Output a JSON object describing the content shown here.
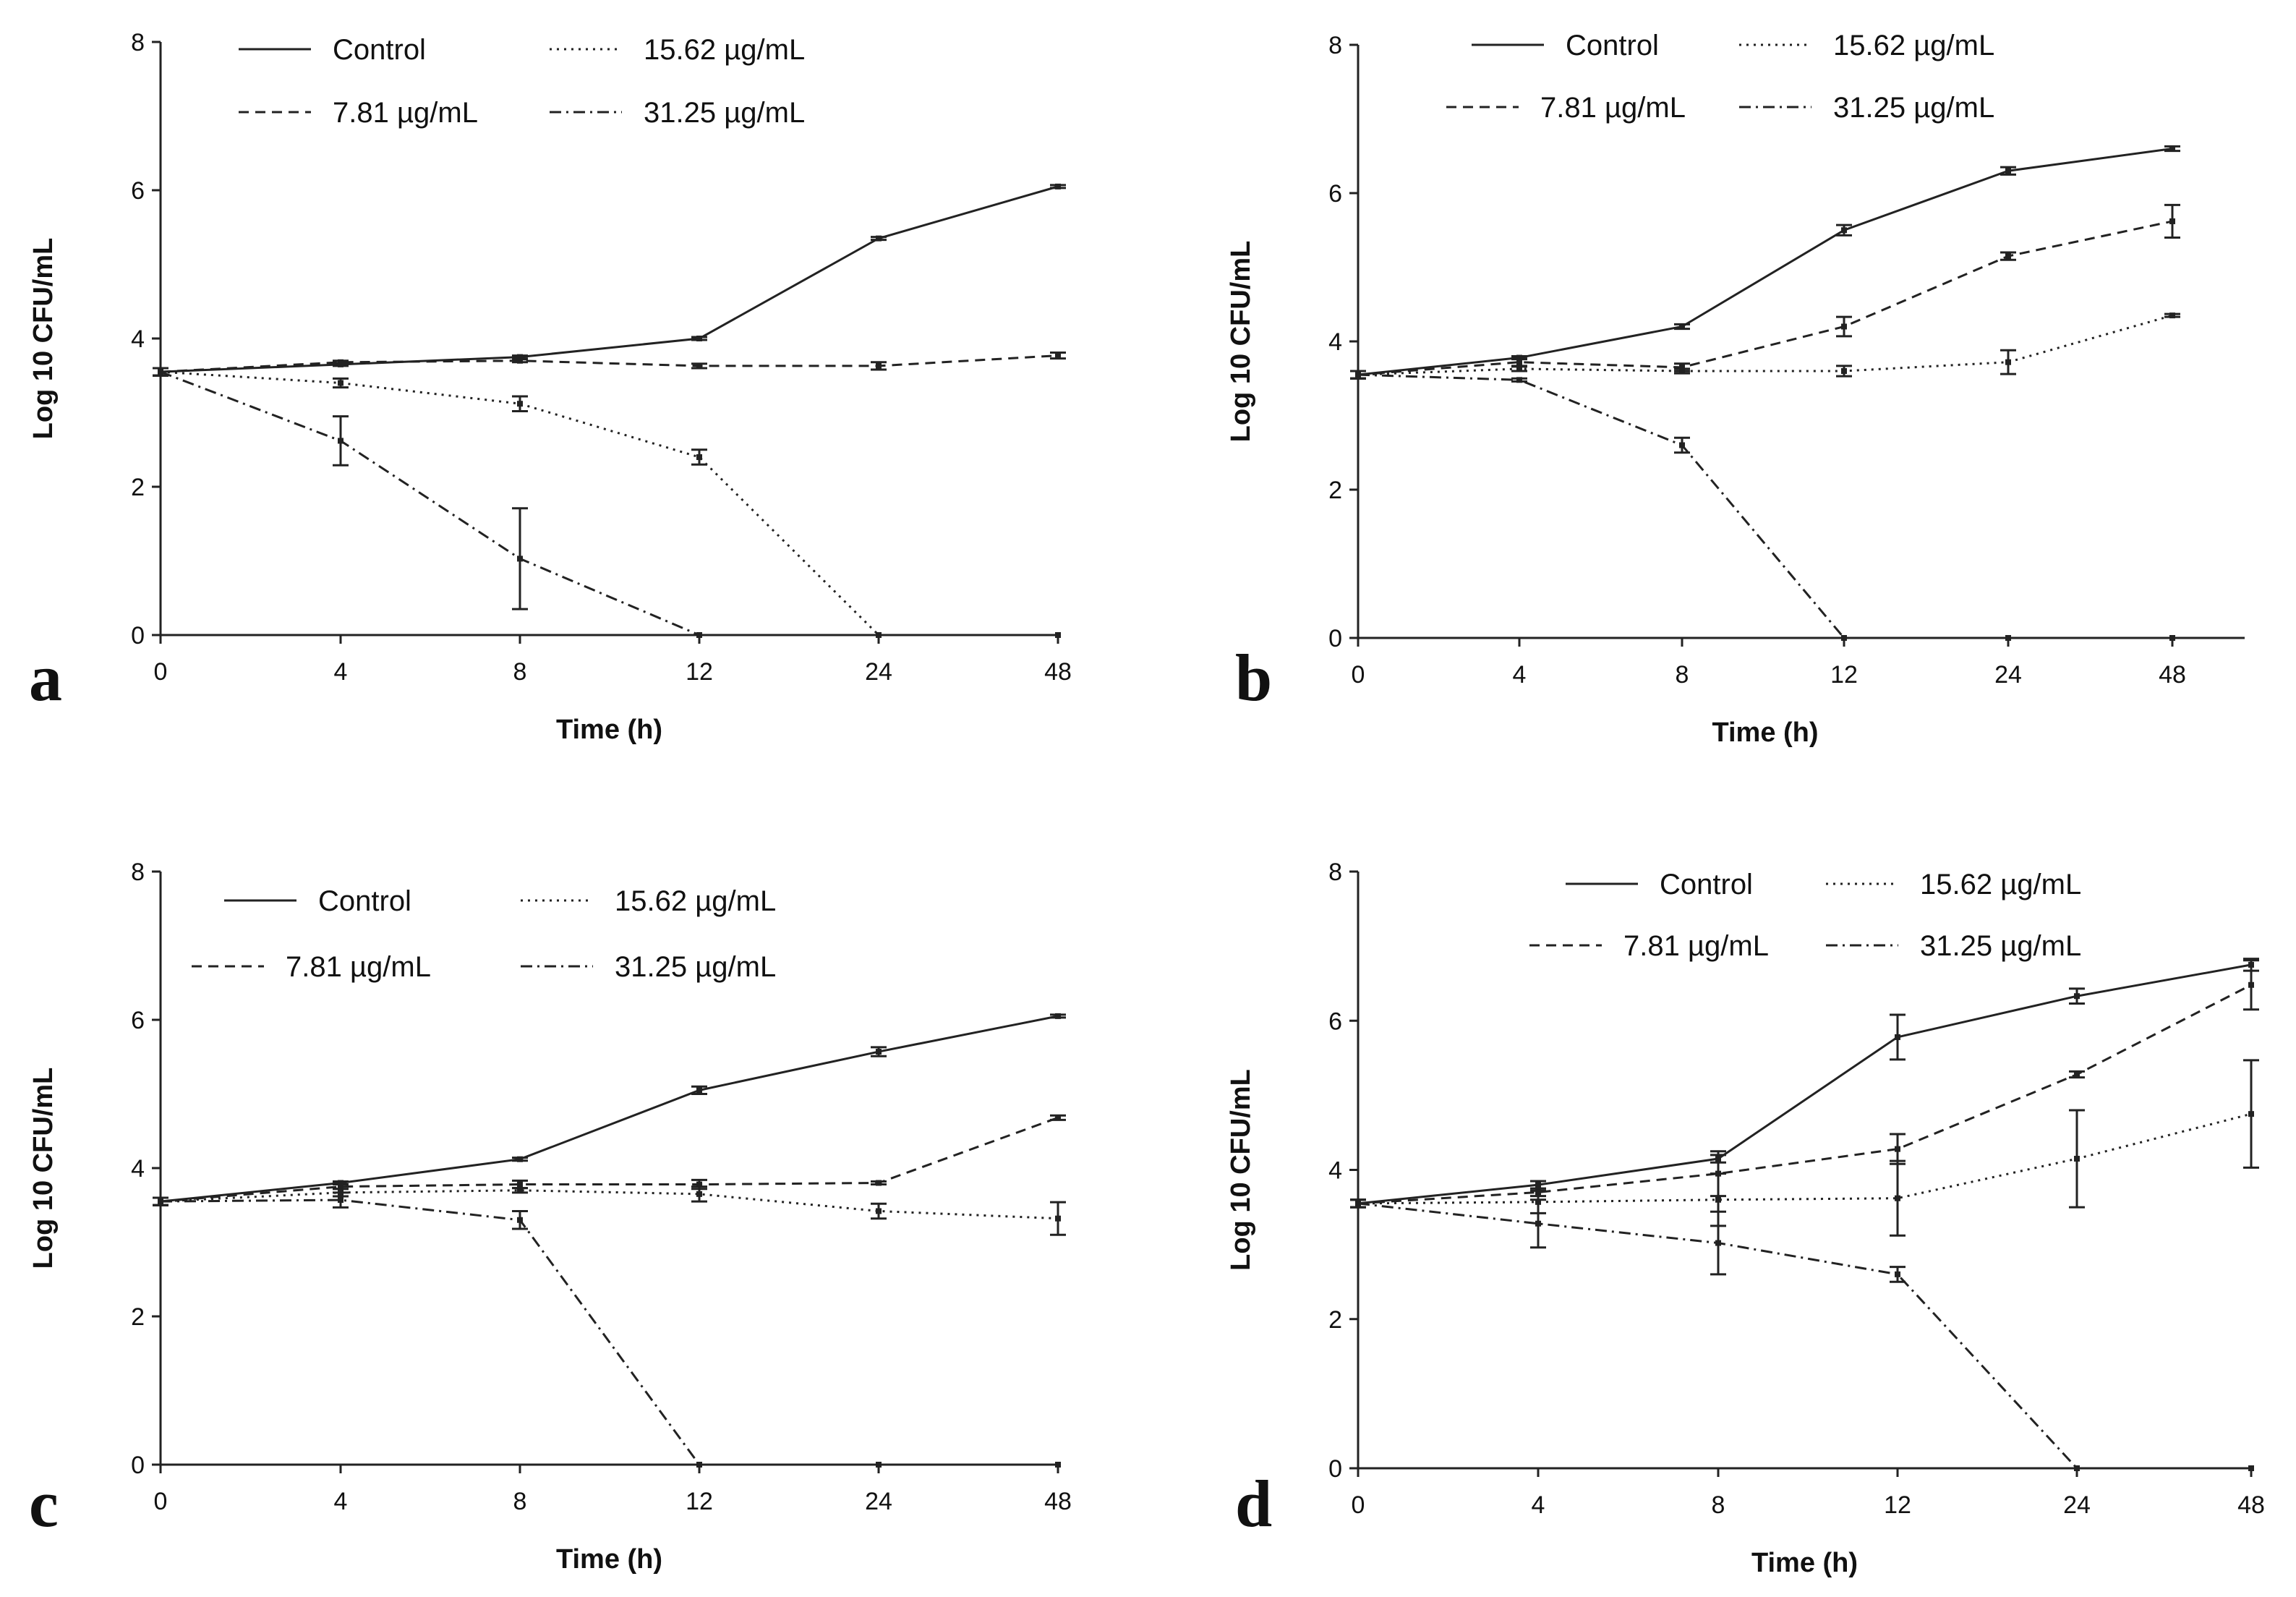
{
  "chart_data": [
    {
      "type": "line",
      "panel": "a",
      "categories": [
        "0",
        "4",
        "8",
        "12",
        "24",
        "48"
      ],
      "xlabel": "Time (h)",
      "ylabel": "Log 10 CFU/mL",
      "ylim": [
        0,
        8
      ],
      "yticks": [
        "0",
        "2",
        "4",
        "6",
        "8"
      ],
      "series": [
        {
          "name": "Control",
          "style": "solid",
          "values": [
            3.55,
            3.65,
            3.75,
            4.0,
            5.35,
            6.05
          ],
          "errors": [
            0.05,
            0.02,
            0.02,
            0.02,
            0.02,
            0.02
          ]
        },
        {
          "name": "7.81 µg/mL",
          "style": "dashed",
          "values": [
            3.55,
            3.68,
            3.7,
            3.63,
            3.63,
            3.77
          ],
          "errors": [
            0.05,
            0.02,
            0.02,
            0.03,
            0.05,
            0.04
          ]
        },
        {
          "name": "15.62 µg/mL",
          "style": "dotted",
          "values": [
            3.55,
            3.4,
            3.12,
            2.4,
            0,
            0
          ],
          "errors": [
            0.05,
            0.06,
            0.1,
            0.1,
            0,
            0
          ]
        },
        {
          "name": "31.25 µg/mL",
          "style": "dashdot",
          "values": [
            3.55,
            2.62,
            1.03,
            0,
            0,
            0
          ],
          "errors": [
            0.05,
            0.33,
            0.68,
            0,
            0,
            0
          ]
        }
      ]
    },
    {
      "type": "line",
      "panel": "b",
      "categories": [
        "0",
        "4",
        "8",
        "12",
        "24",
        "48"
      ],
      "xlabel": "Time (h)",
      "ylabel": "Log 10 CFU/mL",
      "ylim": [
        0,
        8
      ],
      "yticks": [
        "0",
        "2",
        "4",
        "6",
        "8"
      ],
      "series": [
        {
          "name": "Control",
          "style": "solid",
          "values": [
            3.55,
            3.78,
            4.2,
            5.5,
            6.3,
            6.6
          ],
          "errors": [
            0.05,
            0.02,
            0.03,
            0.07,
            0.05,
            0.03
          ]
        },
        {
          "name": "7.81 µg/mL",
          "style": "dashed",
          "values": [
            3.55,
            3.72,
            3.65,
            4.2,
            5.15,
            5.62
          ],
          "errors": [
            0.05,
            0.05,
            0.05,
            0.13,
            0.05,
            0.22
          ]
        },
        {
          "name": "15.62 µg/mL",
          "style": "dotted",
          "values": [
            3.55,
            3.63,
            3.6,
            3.6,
            3.72,
            4.35
          ],
          "errors": [
            0.05,
            0.03,
            0.03,
            0.07,
            0.16,
            0.02
          ]
        },
        {
          "name": "31.25 µg/mL",
          "style": "dashdot",
          "values": [
            3.55,
            3.48,
            2.6,
            0,
            0,
            0
          ],
          "errors": [
            0.05,
            0.02,
            0.1,
            0,
            0,
            0
          ]
        }
      ]
    },
    {
      "type": "line",
      "panel": "c",
      "categories": [
        "0",
        "4",
        "8",
        "12",
        "24",
        "48"
      ],
      "xlabel": "Time (h)",
      "ylabel": "Log 10 CFU/mL",
      "ylim": [
        0,
        8
      ],
      "yticks": [
        "0",
        "2",
        "4",
        "6",
        "8"
      ],
      "series": [
        {
          "name": "Control",
          "style": "solid",
          "values": [
            3.55,
            3.8,
            4.12,
            5.05,
            5.57,
            6.05
          ],
          "errors": [
            0.05,
            0.02,
            0.02,
            0.05,
            0.06,
            0.02
          ]
        },
        {
          "name": "7.81 µg/mL",
          "style": "dashed",
          "values": [
            3.55,
            3.75,
            3.78,
            3.78,
            3.8,
            4.68
          ],
          "errors": [
            0.05,
            0.03,
            0.05,
            0.06,
            0.02,
            0.03
          ]
        },
        {
          "name": "15.62 µg/mL",
          "style": "dotted",
          "values": [
            3.55,
            3.67,
            3.7,
            3.65,
            3.42,
            3.32
          ],
          "errors": [
            0.05,
            0.05,
            0.03,
            0.1,
            0.1,
            0.22
          ]
        },
        {
          "name": "31.25 µg/mL",
          "style": "dashdot",
          "values": [
            3.55,
            3.57,
            3.3,
            0,
            0,
            0
          ],
          "errors": [
            0.05,
            0.1,
            0.12,
            0,
            0,
            0
          ]
        }
      ]
    },
    {
      "type": "line",
      "panel": "d",
      "categories": [
        "0",
        "4",
        "8",
        "12",
        "24",
        "48"
      ],
      "xlabel": "Time (h)",
      "ylabel": "Log 10 CFU/mL",
      "ylim": [
        0,
        8
      ],
      "yticks": [
        "0",
        "2",
        "4",
        "6",
        "8"
      ],
      "series": [
        {
          "name": "Control",
          "style": "solid",
          "values": [
            3.55,
            3.8,
            4.15,
            5.78,
            6.33,
            6.75
          ],
          "errors": [
            0.05,
            0.05,
            0.05,
            0.3,
            0.1,
            0.08
          ]
        },
        {
          "name": "7.81 µg/mL",
          "style": "dashed",
          "values": [
            3.55,
            3.7,
            3.95,
            4.28,
            5.28,
            6.48
          ],
          "errors": [
            0.05,
            0.05,
            0.3,
            0.2,
            0.04,
            0.33
          ]
        },
        {
          "name": "15.62 µg/mL",
          "style": "dotted",
          "values": [
            3.55,
            3.57,
            3.6,
            3.62,
            4.15,
            4.75
          ],
          "errors": [
            0.05,
            0.15,
            0.35,
            0.5,
            0.65,
            0.72
          ]
        },
        {
          "name": "31.25 µg/mL",
          "style": "dashdot",
          "values": [
            3.55,
            3.28,
            3.02,
            2.6,
            0,
            0
          ],
          "errors": [
            0.05,
            0.32,
            0.42,
            0.1,
            0,
            0
          ]
        }
      ]
    }
  ]
}
